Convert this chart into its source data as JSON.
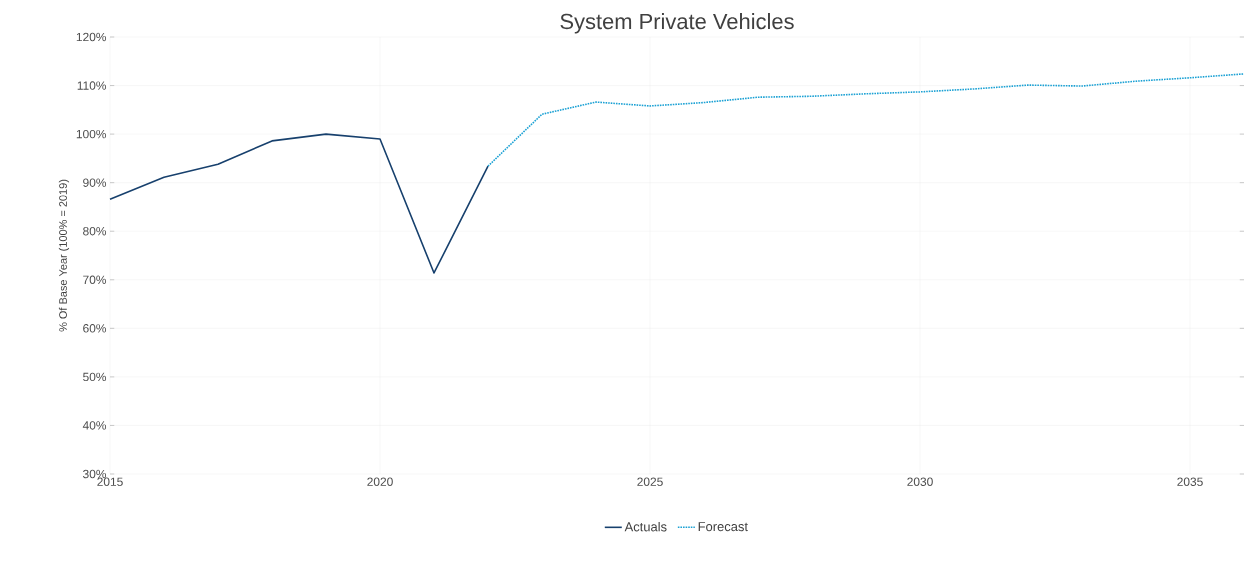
{
  "chart_data": {
    "type": "line",
    "title": "System Private Vehicles",
    "ylabel": "% Of Base Year (100% = 2019)",
    "xlim": [
      2015,
      2036
    ],
    "xticks": [
      2015,
      2020,
      2025,
      2030,
      2035
    ],
    "ylim": [
      30,
      120
    ],
    "yticks": [
      {
        "value": 30,
        "label": "30%"
      },
      {
        "value": 40,
        "label": "40%"
      },
      {
        "value": 50,
        "label": "50%"
      },
      {
        "value": 60,
        "label": "60%"
      },
      {
        "value": 70,
        "label": "70%"
      },
      {
        "value": 80,
        "label": "80%"
      },
      {
        "value": 90,
        "label": "90%"
      },
      {
        "value": 100,
        "label": "100%"
      },
      {
        "value": 110,
        "label": "110%"
      },
      {
        "value": 120,
        "label": "120%"
      }
    ],
    "grid": true,
    "legend": "bottom",
    "marker": "none",
    "series": [
      {
        "name": "Actuals",
        "color": "#17406d",
        "line_style": "solid",
        "x": [
          2015,
          2016,
          2017,
          2018,
          2019,
          2020,
          2021,
          2022
        ],
        "values": [
          86.6,
          91.1,
          93.8,
          98.6,
          100,
          99,
          71.4,
          93.4
        ]
      },
      {
        "name": "Forecast",
        "color": "#1ba1d4",
        "line_style": "dotted",
        "x": [
          2022,
          2023,
          2024,
          2025,
          2026,
          2027,
          2028,
          2029,
          2030,
          2031,
          2032,
          2033,
          2034,
          2035,
          2036
        ],
        "values": [
          93.4,
          104.1,
          106.6,
          105.8,
          106.5,
          107.6,
          107.8,
          108.3,
          108.7,
          109.3,
          110.1,
          109.9,
          110.9,
          111.6,
          112.4
        ]
      }
    ]
  }
}
